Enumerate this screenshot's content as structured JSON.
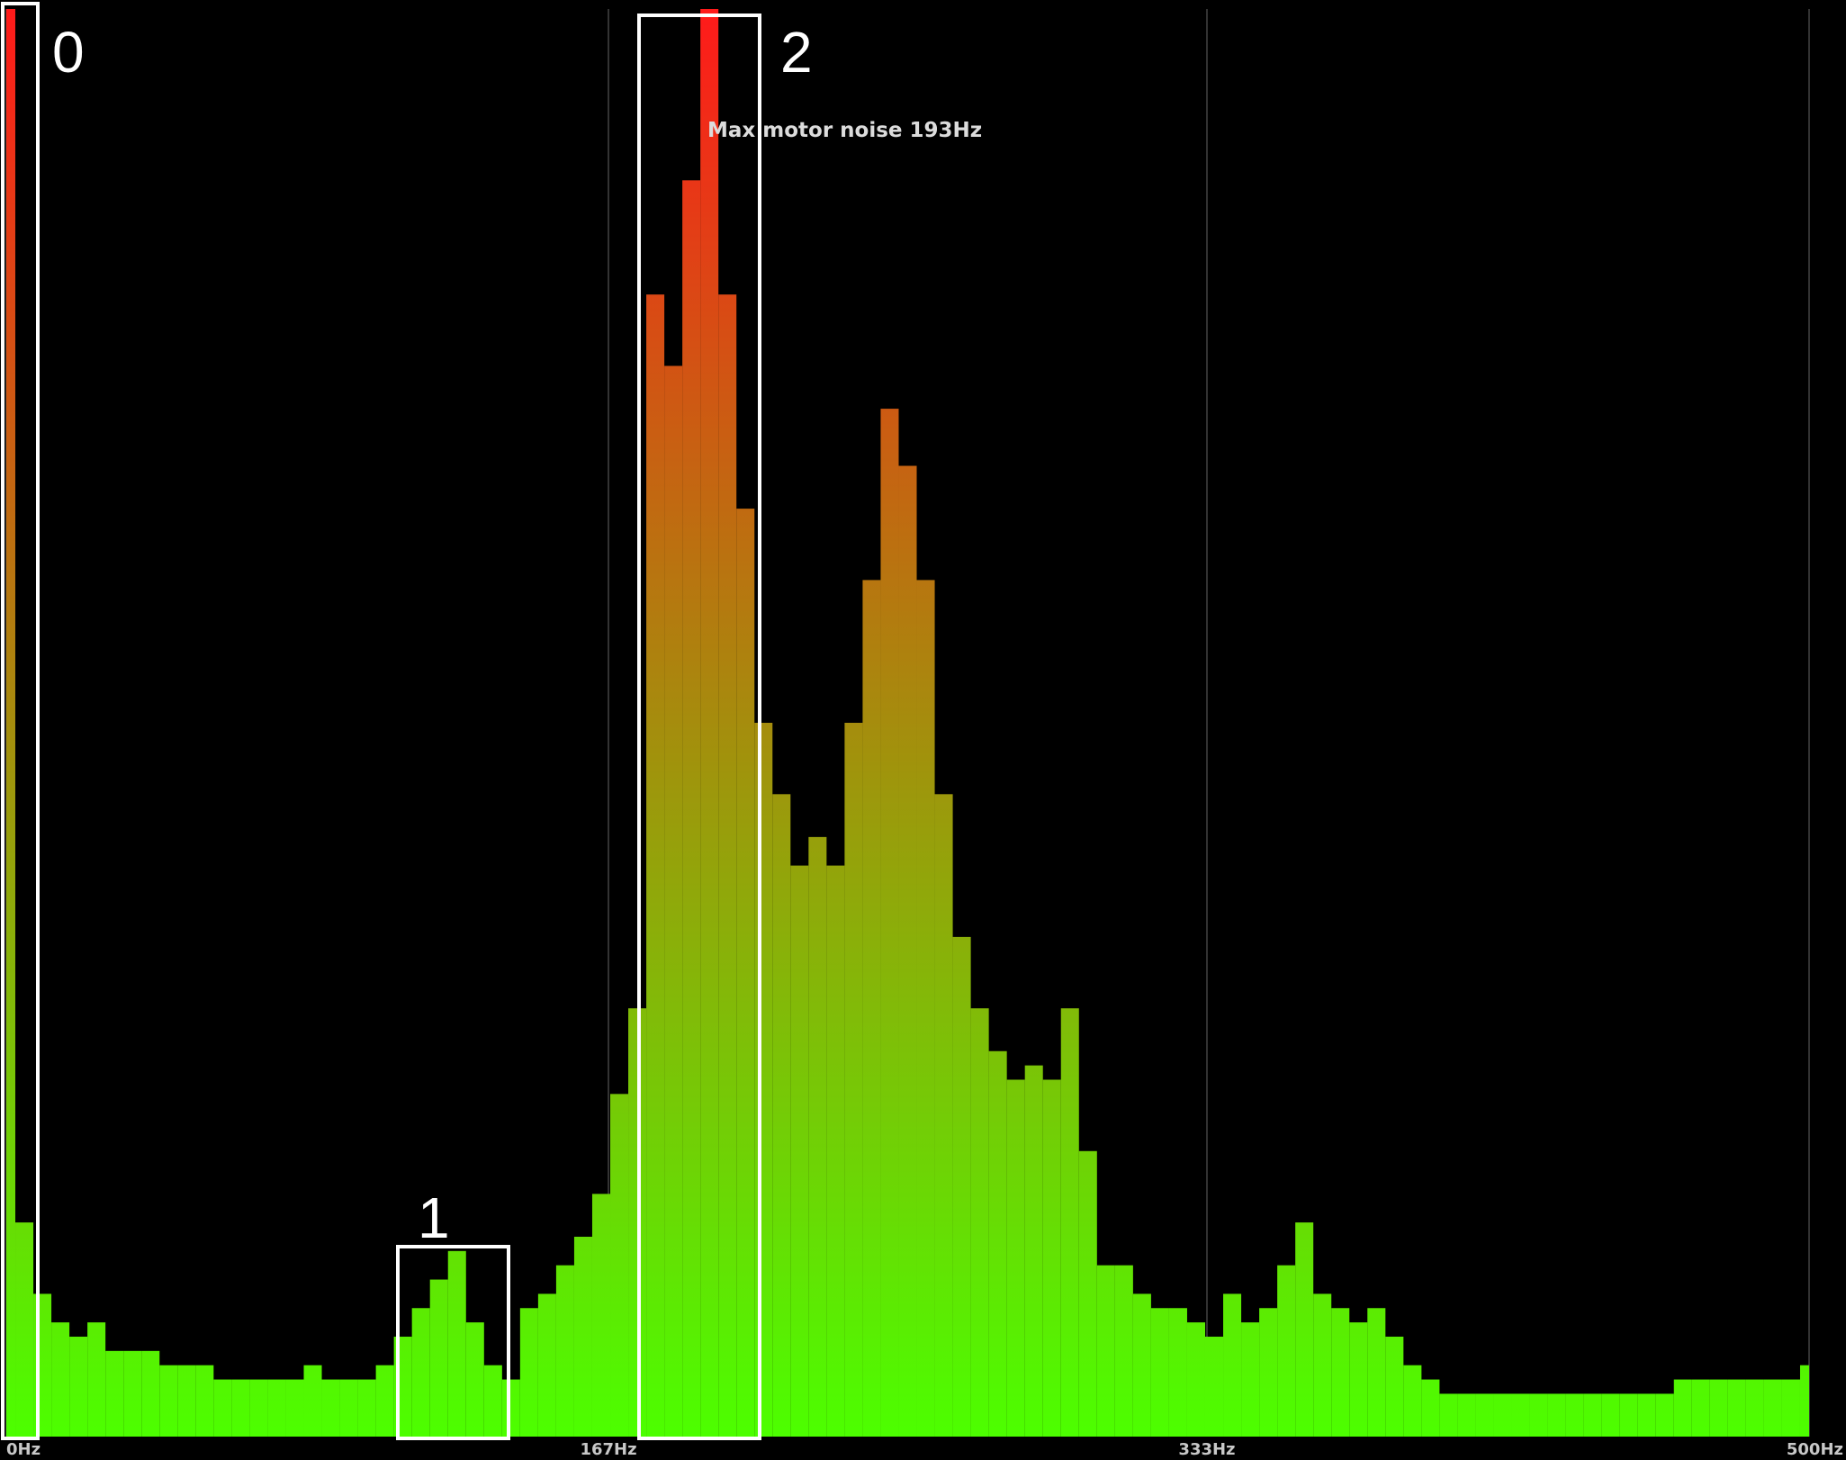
{
  "chart_data": {
    "type": "bar",
    "annotation": "Max motor noise 193Hz",
    "box_labels": [
      "0",
      "1",
      "2"
    ],
    "x": [
      0,
      5,
      10,
      15,
      20,
      25,
      30,
      35,
      40,
      45,
      50,
      55,
      60,
      65,
      70,
      75,
      80,
      85,
      90,
      95,
      100,
      105,
      110,
      115,
      120,
      125,
      130,
      135,
      140,
      145,
      150,
      155,
      160,
      165,
      170,
      175,
      180,
      185,
      190,
      195,
      200,
      205,
      210,
      215,
      220,
      225,
      230,
      235,
      240,
      245,
      250,
      255,
      260,
      265,
      270,
      275,
      280,
      285,
      290,
      295,
      300,
      305,
      310,
      315,
      320,
      325,
      330,
      335,
      340,
      345,
      350,
      355,
      360,
      365,
      370,
      375,
      380,
      385,
      390,
      395,
      400,
      405,
      410,
      415,
      420,
      425,
      430,
      435,
      440,
      445,
      450,
      455,
      460,
      465,
      470,
      475,
      480,
      485,
      490,
      495,
      500
    ],
    "values": [
      100,
      15,
      10,
      8,
      7,
      8,
      6,
      6,
      6,
      5,
      5,
      5,
      4,
      4,
      4,
      4,
      4,
      5,
      4,
      4,
      4,
      5,
      7,
      9,
      11,
      13,
      8,
      5,
      4,
      9,
      10,
      12,
      14,
      17,
      24,
      30,
      80,
      75,
      88,
      100,
      80,
      65,
      50,
      45,
      40,
      42,
      40,
      50,
      60,
      72,
      68,
      60,
      45,
      35,
      30,
      27,
      25,
      26,
      25,
      30,
      20,
      12,
      12,
      10,
      9,
      9,
      8,
      7,
      10,
      8,
      9,
      12,
      15,
      10,
      9,
      8,
      9,
      7,
      5,
      4,
      3,
      3,
      3,
      3,
      3,
      3,
      3,
      3,
      3,
      3,
      3,
      3,
      3,
      4,
      4,
      4,
      4,
      4,
      4,
      4,
      5
    ],
    "color_scale": [
      "#4cff00",
      "#ff1a1a"
    ],
    "xlim": [
      0,
      500
    ],
    "ylim": [
      0,
      100
    ],
    "xticks": [
      {
        "value": 0,
        "label": "0Hz"
      },
      {
        "value": 167,
        "label": "167Hz"
      },
      {
        "value": 333,
        "label": "333Hz"
      },
      {
        "value": 500,
        "label": "500Hz"
      }
    ],
    "grid": true
  }
}
